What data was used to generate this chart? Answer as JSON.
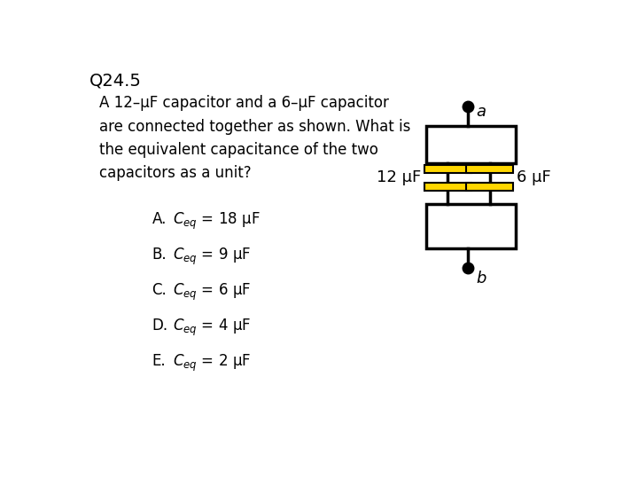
{
  "title": "Q24.5",
  "question_text": "A 12–μF capacitor and a 6–μF capacitor\nare connected together as shown. What is\nthe equivalent capacitance of the two\ncapacitors as a unit?",
  "options": [
    {
      "letter": "A.",
      "math": "$C_{eq}$ = 18 μF"
    },
    {
      "letter": "B.",
      "math": "$C_{eq}$ = 9 μF"
    },
    {
      "letter": "C.",
      "math": "$C_{eq}$ = 6 μF"
    },
    {
      "letter": "D.",
      "math": "$C_{eq}$ = 4 μF"
    },
    {
      "letter": "E.",
      "math": "$C_{eq}$ = 2 μF"
    }
  ],
  "circuit": {
    "cap_color": "#FFD700",
    "cap_border": "#000000",
    "wire_color": "#000000",
    "label_a": "a",
    "label_b": "b",
    "label_12": "12 μF",
    "label_6": "6 μF"
  },
  "bg_color": "#ffffff",
  "text_color": "#000000",
  "font_size_title": 14,
  "font_size_body": 12,
  "font_size_option": 12
}
